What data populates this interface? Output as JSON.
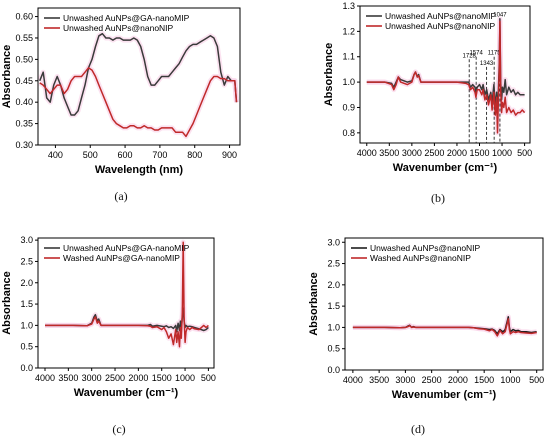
{
  "chart_data": [
    {
      "panel": "(a)",
      "type": "line",
      "xlabel": "Wavelength (nm)",
      "ylabel": "Absorbance",
      "xlim": [
        350,
        930
      ],
      "ylim": [
        0.3,
        0.62
      ],
      "xticks": [
        400,
        500,
        600,
        700,
        800,
        900
      ],
      "yticks": [
        0.3,
        0.35,
        0.4,
        0.45,
        0.5,
        0.55,
        0.6
      ],
      "tick_decimals": 2,
      "legend_position": "top-left",
      "annotations": [],
      "series": [
        {
          "name": "Unwashed AuNPs@GA-nanoMIP",
          "color": "#3a3a3a",
          "x": [
            355,
            365,
            375,
            385,
            395,
            405,
            415,
            425,
            435,
            445,
            455,
            465,
            475,
            485,
            495,
            505,
            515,
            525,
            535,
            545,
            555,
            565,
            575,
            585,
            595,
            605,
            615,
            625,
            635,
            645,
            655,
            665,
            675,
            685,
            695,
            705,
            715,
            725,
            735,
            745,
            755,
            765,
            775,
            785,
            795,
            805,
            815,
            825,
            835,
            845,
            855,
            865,
            875,
            885,
            895,
            905,
            915,
            920
          ],
          "y": [
            0.45,
            0.47,
            0.41,
            0.4,
            0.44,
            0.46,
            0.44,
            0.41,
            0.39,
            0.37,
            0.37,
            0.38,
            0.41,
            0.44,
            0.48,
            0.5,
            0.53,
            0.555,
            0.56,
            0.55,
            0.55,
            0.545,
            0.55,
            0.55,
            0.545,
            0.545,
            0.545,
            0.55,
            0.545,
            0.53,
            0.5,
            0.46,
            0.44,
            0.44,
            0.45,
            0.46,
            0.46,
            0.46,
            0.47,
            0.48,
            0.49,
            0.505,
            0.52,
            0.53,
            0.535,
            0.535,
            0.54,
            0.545,
            0.55,
            0.555,
            0.55,
            0.53,
            0.47,
            0.44,
            0.46,
            0.45,
            0.45,
            0.4
          ]
        },
        {
          "name": "Unwashed AuNPs@nanoNIP",
          "color": "#c0292a",
          "x": [
            355,
            365,
            375,
            385,
            395,
            405,
            415,
            425,
            435,
            445,
            455,
            465,
            475,
            485,
            495,
            505,
            515,
            525,
            535,
            545,
            555,
            565,
            575,
            585,
            595,
            605,
            615,
            625,
            635,
            645,
            655,
            665,
            675,
            685,
            695,
            705,
            715,
            725,
            735,
            745,
            755,
            765,
            775,
            785,
            795,
            805,
            815,
            825,
            835,
            845,
            855,
            865,
            875,
            885,
            895,
            905,
            915,
            920
          ],
          "y": [
            0.445,
            0.44,
            0.43,
            0.42,
            0.43,
            0.44,
            0.44,
            0.42,
            0.43,
            0.45,
            0.46,
            0.46,
            0.46,
            0.47,
            0.48,
            0.475,
            0.46,
            0.44,
            0.42,
            0.4,
            0.38,
            0.36,
            0.35,
            0.345,
            0.34,
            0.34,
            0.345,
            0.345,
            0.34,
            0.34,
            0.345,
            0.34,
            0.34,
            0.335,
            0.335,
            0.34,
            0.34,
            0.34,
            0.34,
            0.33,
            0.33,
            0.33,
            0.32,
            0.335,
            0.35,
            0.37,
            0.39,
            0.41,
            0.43,
            0.45,
            0.46,
            0.46,
            0.455,
            0.455,
            0.45,
            0.45,
            0.45,
            0.4
          ]
        }
      ]
    },
    {
      "panel": "(b)",
      "type": "line",
      "xlabel": "Wavenumber (cm⁻¹)",
      "ylabel": "Absorbance",
      "xlim": [
        4150,
        380
      ],
      "ylim": [
        0.76,
        1.3
      ],
      "xticks": [
        4000,
        3500,
        3000,
        2500,
        2000,
        1500,
        1000,
        500
      ],
      "yticks": [
        0.8,
        0.9,
        1.0,
        1.1,
        1.2,
        1.3
      ],
      "tick_decimals": 1,
      "legend_position": "top-left",
      "annotations": [
        {
          "label": "1728",
          "x": 1728,
          "top": 1.09
        },
        {
          "label": "1574",
          "x": 1574,
          "top": 1.1
        },
        {
          "label": "1343",
          "x": 1343,
          "top": 1.06
        },
        {
          "label": "1175",
          "x": 1175,
          "top": 1.1
        },
        {
          "label": "1047",
          "x": 1047,
          "top": 1.25
        }
      ],
      "series": [
        {
          "name": "Unwashed AuNPs@nanoMIP",
          "color": "#3a3a3a",
          "x": [
            4000,
            3800,
            3600,
            3450,
            3400,
            3350,
            3300,
            3250,
            3100,
            3000,
            2950,
            2920,
            2880,
            2850,
            2800,
            2500,
            2300,
            2100,
            2000,
            1800,
            1740,
            1700,
            1650,
            1600,
            1580,
            1550,
            1500,
            1450,
            1420,
            1380,
            1340,
            1300,
            1250,
            1220,
            1180,
            1150,
            1120,
            1100,
            1080,
            1060,
            1047,
            1030,
            1010,
            990,
            960,
            930,
            900,
            850,
            800,
            750,
            700,
            650,
            600,
            550,
            500
          ],
          "y": [
            1.0,
            1.0,
            1.0,
            0.995,
            0.98,
            1.0,
            1.02,
            1.01,
            1.0,
            1.005,
            1.03,
            1.04,
            1.02,
            1.03,
            1.0,
            1.0,
            1.0,
            1.0,
            1.0,
            1.0,
            1.0,
            0.98,
            0.99,
            0.98,
            0.96,
            0.98,
            0.99,
            0.97,
            0.99,
            0.95,
            0.97,
            0.93,
            0.96,
            0.92,
            0.99,
            0.9,
            0.96,
            0.86,
            0.97,
            1.08,
            1.25,
            1.0,
            0.93,
            0.98,
            0.96,
            1.01,
            0.95,
            0.98,
            0.96,
            0.97,
            0.95,
            0.96,
            0.95,
            0.95,
            0.95
          ]
        },
        {
          "name": "Unwashed AuNPs@nanoNIP",
          "color": "#c0292a",
          "x": [
            4000,
            3800,
            3600,
            3450,
            3400,
            3350,
            3300,
            3250,
            3100,
            3000,
            2950,
            2920,
            2880,
            2850,
            2800,
            2500,
            2300,
            2100,
            2000,
            1800,
            1740,
            1700,
            1650,
            1600,
            1580,
            1550,
            1500,
            1450,
            1420,
            1380,
            1340,
            1300,
            1250,
            1220,
            1180,
            1150,
            1120,
            1100,
            1080,
            1060,
            1047,
            1030,
            1010,
            990,
            960,
            930,
            900,
            850,
            800,
            750,
            700,
            650,
            600,
            550,
            500
          ],
          "y": [
            1.0,
            1.0,
            1.0,
            0.99,
            0.97,
            0.99,
            1.02,
            1.0,
            0.99,
            1.0,
            1.03,
            1.04,
            1.02,
            1.025,
            1.0,
            1.0,
            1.0,
            1.0,
            1.0,
            0.995,
            0.99,
            0.97,
            0.98,
            0.96,
            0.94,
            0.97,
            0.97,
            0.95,
            0.97,
            0.93,
            0.95,
            0.91,
            0.95,
            0.89,
            0.96,
            0.87,
            0.94,
            0.8,
            0.93,
            1.05,
            1.24,
            0.97,
            0.88,
            0.92,
            0.9,
            0.94,
            0.88,
            0.9,
            0.88,
            0.89,
            0.87,
            0.88,
            0.88,
            0.89,
            0.88
          ]
        }
      ]
    },
    {
      "panel": "(c)",
      "type": "line",
      "xlabel": "Wavenumber (cm⁻¹)",
      "ylabel": "Absorbance",
      "xlim": [
        4150,
        380
      ],
      "ylim": [
        0.0,
        3.05
      ],
      "xticks": [
        4000,
        3500,
        3000,
        2500,
        2000,
        1500,
        1000,
        500
      ],
      "yticks": [
        0.0,
        0.5,
        1.0,
        1.5,
        2.0,
        2.5,
        3.0
      ],
      "tick_decimals": 1,
      "legend_position": "top-left",
      "annotations": [],
      "series": [
        {
          "name": "Unwashed AuNPs@GA-nanoMIP",
          "color": "#3a3a3a",
          "x": [
            4000,
            3700,
            3400,
            3100,
            3000,
            2950,
            2920,
            2880,
            2850,
            2800,
            2500,
            2200,
            2000,
            1800,
            1740,
            1700,
            1600,
            1500,
            1450,
            1400,
            1350,
            1300,
            1250,
            1200,
            1180,
            1150,
            1120,
            1100,
            1080,
            1060,
            1040,
            1020,
            1000,
            980,
            950,
            900,
            850,
            800,
            700,
            600,
            550,
            500
          ],
          "y": [
            1.0,
            1.0,
            1.0,
            0.99,
            1.05,
            1.2,
            1.25,
            1.1,
            1.15,
            1.0,
            1.0,
            1.0,
            1.0,
            1.0,
            1.02,
            0.98,
            1.0,
            0.98,
            0.97,
            0.99,
            0.95,
            0.97,
            0.93,
            1.0,
            0.85,
            1.05,
            0.88,
            1.1,
            0.9,
            1.2,
            1.4,
            1.1,
            0.95,
            1.0,
            0.97,
            0.98,
            0.97,
            0.95,
            0.92,
            0.88,
            0.9,
            0.95
          ]
        },
        {
          "name": "Washed AuNPs@GA-nanoMIP",
          "color": "#c0292a",
          "x": [
            4000,
            3700,
            3400,
            3100,
            3000,
            2950,
            2920,
            2880,
            2850,
            2800,
            2500,
            2200,
            2000,
            1800,
            1740,
            1700,
            1600,
            1500,
            1450,
            1400,
            1350,
            1300,
            1250,
            1200,
            1180,
            1150,
            1120,
            1100,
            1080,
            1060,
            1040,
            1030,
            1020,
            1000,
            980,
            950,
            900,
            850,
            800,
            700,
            600,
            550,
            500
          ],
          "y": [
            1.0,
            1.0,
            1.0,
            0.99,
            1.03,
            1.15,
            1.2,
            1.05,
            1.1,
            1.0,
            1.0,
            1.0,
            1.0,
            0.99,
            0.98,
            0.95,
            0.97,
            0.9,
            0.95,
            0.85,
            0.7,
            0.8,
            0.55,
            0.9,
            0.6,
            0.85,
            0.5,
            0.95,
            0.7,
            1.3,
            2.95,
            2.0,
            1.2,
            0.6,
            0.85,
            0.95,
            0.9,
            0.95,
            0.92,
            0.9,
            1.0,
            0.95,
            1.0
          ]
        }
      ]
    },
    {
      "panel": "(d)",
      "type": "line",
      "xlabel": "Wavenumber (cm⁻¹)",
      "ylabel": "Absorbance",
      "xlim": [
        4150,
        380
      ],
      "ylim": [
        0.0,
        3.1
      ],
      "xticks": [
        4000,
        3500,
        3000,
        2500,
        2000,
        1500,
        1000,
        500
      ],
      "yticks": [
        0.0,
        0.5,
        1.0,
        1.5,
        2.0,
        2.5,
        3.0
      ],
      "tick_decimals": 1,
      "legend_position": "top-left",
      "annotations": [],
      "series": [
        {
          "name": "Unwashed AuNPs@nanoNIP",
          "color": "#1f1f1f",
          "x": [
            4000,
            3700,
            3400,
            3100,
            3000,
            2950,
            2920,
            2880,
            2850,
            2800,
            2500,
            2200,
            2000,
            1800,
            1700,
            1600,
            1500,
            1400,
            1350,
            1300,
            1250,
            1200,
            1150,
            1120,
            1100,
            1080,
            1060,
            1040,
            1020,
            1000,
            950,
            900,
            850,
            800,
            700,
            600,
            500
          ],
          "y": [
            1.0,
            1.0,
            1.0,
            0.99,
            1.0,
            1.03,
            1.05,
            1.0,
            1.02,
            1.0,
            1.0,
            1.0,
            1.0,
            1.0,
            0.99,
            0.98,
            0.97,
            0.95,
            0.96,
            0.93,
            0.85,
            0.95,
            0.9,
            0.92,
            0.95,
            1.05,
            1.15,
            1.25,
            1.0,
            0.9,
            0.95,
            0.92,
            0.93,
            0.9,
            0.9,
            0.88,
            0.9
          ]
        },
        {
          "name": "Washed AuNPs@nanoNIP",
          "color": "#c0292a",
          "x": [
            4000,
            3700,
            3400,
            3100,
            3000,
            2950,
            2920,
            2880,
            2850,
            2800,
            2500,
            2200,
            2000,
            1800,
            1700,
            1600,
            1500,
            1400,
            1350,
            1300,
            1250,
            1200,
            1150,
            1120,
            1100,
            1080,
            1060,
            1040,
            1020,
            1000,
            950,
            900,
            850,
            800,
            700,
            600,
            500
          ],
          "y": [
            1.0,
            1.0,
            1.0,
            0.99,
            1.0,
            1.02,
            1.04,
            1.0,
            1.01,
            1.0,
            1.0,
            1.0,
            1.0,
            1.0,
            0.99,
            0.97,
            0.96,
            0.92,
            0.95,
            0.9,
            0.8,
            0.93,
            0.85,
            0.88,
            0.9,
            1.0,
            1.1,
            1.2,
            0.95,
            0.85,
            0.9,
            0.88,
            0.9,
            0.88,
            0.87,
            0.86,
            0.88
          ]
        }
      ]
    }
  ],
  "colors": {
    "axis": "#000000",
    "mark_fill": "#f9cfe6",
    "unwashed": "#3a3a3a",
    "red": "#c0292a"
  }
}
